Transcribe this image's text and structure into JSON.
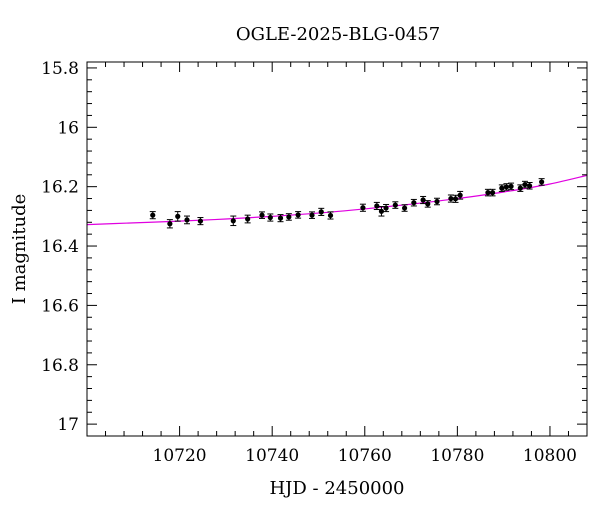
{
  "chart_data": {
    "type": "scatter",
    "title": "OGLE-2025-BLG-0457",
    "xlabel": "HJD - 2450000",
    "ylabel": "I magnitude",
    "xlim": [
      10700,
      10808
    ],
    "ylim": [
      17.04,
      15.78
    ],
    "y_inverted": true,
    "grid": false,
    "x_ticks": [
      10720,
      10740,
      10760,
      10780,
      10800
    ],
    "x_tick_labels": [
      "10720",
      "10740",
      "10760",
      "10780",
      "10800"
    ],
    "y_ticks": [
      15.8,
      16,
      16.2,
      16.4,
      16.6,
      16.8,
      17
    ],
    "y_tick_labels": [
      "15.8",
      "16",
      "16.2",
      "16.4",
      "16.6",
      "16.8",
      "17"
    ],
    "colors": {
      "points": "#000000",
      "model": "#e000e0"
    },
    "series": [
      {
        "kind": "points_with_errorbars",
        "points": [
          {
            "x": 10714.2,
            "y": 16.296,
            "err": 0.012
          },
          {
            "x": 10717.9,
            "y": 16.325,
            "err": 0.014
          },
          {
            "x": 10719.6,
            "y": 16.3,
            "err": 0.016
          },
          {
            "x": 10721.6,
            "y": 16.312,
            "err": 0.013
          },
          {
            "x": 10724.5,
            "y": 16.316,
            "err": 0.012
          },
          {
            "x": 10731.6,
            "y": 16.315,
            "err": 0.016
          },
          {
            "x": 10734.7,
            "y": 16.309,
            "err": 0.013
          },
          {
            "x": 10737.8,
            "y": 16.296,
            "err": 0.011
          },
          {
            "x": 10739.6,
            "y": 16.304,
            "err": 0.012
          },
          {
            "x": 10741.8,
            "y": 16.306,
            "err": 0.012
          },
          {
            "x": 10743.6,
            "y": 16.302,
            "err": 0.011
          },
          {
            "x": 10745.6,
            "y": 16.295,
            "err": 0.011
          },
          {
            "x": 10748.6,
            "y": 16.296,
            "err": 0.011
          },
          {
            "x": 10750.6,
            "y": 16.285,
            "err": 0.012
          },
          {
            "x": 10752.6,
            "y": 16.297,
            "err": 0.012
          },
          {
            "x": 10759.6,
            "y": 16.271,
            "err": 0.012
          },
          {
            "x": 10762.6,
            "y": 16.265,
            "err": 0.012
          },
          {
            "x": 10763.6,
            "y": 16.283,
            "err": 0.016
          },
          {
            "x": 10764.6,
            "y": 16.272,
            "err": 0.012
          },
          {
            "x": 10766.6,
            "y": 16.262,
            "err": 0.011
          },
          {
            "x": 10768.6,
            "y": 16.272,
            "err": 0.011
          },
          {
            "x": 10770.6,
            "y": 16.254,
            "err": 0.011
          },
          {
            "x": 10772.6,
            "y": 16.245,
            "err": 0.012
          },
          {
            "x": 10773.6,
            "y": 16.258,
            "err": 0.011
          },
          {
            "x": 10775.6,
            "y": 16.25,
            "err": 0.011
          },
          {
            "x": 10778.6,
            "y": 16.24,
            "err": 0.012
          },
          {
            "x": 10779.6,
            "y": 16.241,
            "err": 0.012
          },
          {
            "x": 10780.6,
            "y": 16.229,
            "err": 0.013
          },
          {
            "x": 10786.6,
            "y": 16.22,
            "err": 0.011
          },
          {
            "x": 10787.6,
            "y": 16.22,
            "err": 0.011
          },
          {
            "x": 10789.6,
            "y": 16.205,
            "err": 0.011
          },
          {
            "x": 10790.6,
            "y": 16.201,
            "err": 0.011
          },
          {
            "x": 10791.6,
            "y": 16.199,
            "err": 0.011
          },
          {
            "x": 10793.6,
            "y": 16.205,
            "err": 0.011
          },
          {
            "x": 10794.6,
            "y": 16.193,
            "err": 0.011
          },
          {
            "x": 10795.6,
            "y": 16.197,
            "err": 0.011
          },
          {
            "x": 10798.2,
            "y": 16.184,
            "err": 0.011
          }
        ]
      },
      {
        "kind": "model_curve",
        "x": [
          10700,
          10710,
          10720,
          10730,
          10740,
          10750,
          10760,
          10770,
          10780,
          10790,
          10800,
          10808
        ],
        "y": [
          16.328,
          16.322,
          16.316,
          16.309,
          16.3,
          16.289,
          16.275,
          16.259,
          16.24,
          16.218,
          16.191,
          16.162
        ]
      }
    ]
  }
}
